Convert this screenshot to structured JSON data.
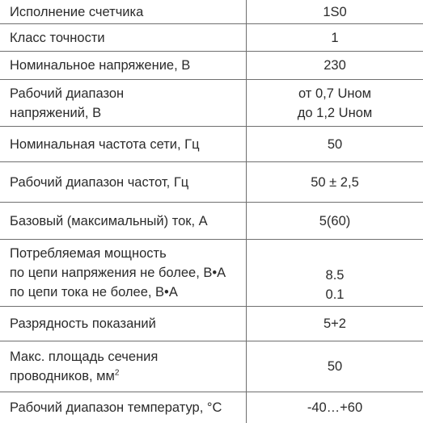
{
  "rows": [
    {
      "label_lines": [
        "Исполнение счетчика"
      ],
      "value_lines": [
        "1S0"
      ]
    },
    {
      "label_lines": [
        "Класс точности"
      ],
      "value_lines": [
        "1"
      ]
    },
    {
      "label_lines": [
        "Номинальное напряжение, В"
      ],
      "value_lines": [
        "230"
      ]
    },
    {
      "label_lines": [
        "Рабочий диапазон",
        "напряжений, В"
      ],
      "value_lines": [
        "от 0,7 Uном",
        "до 1,2 Uном"
      ]
    },
    {
      "label_lines": [
        "Номинальная частота сети, Гц"
      ],
      "value_lines": [
        "50"
      ]
    },
    {
      "label_lines": [
        "Рабочий диапазон частот, Гц"
      ],
      "value_lines": [
        "50 ± 2,5"
      ]
    },
    {
      "label_lines": [
        "Базовый (максимальный) ток, А"
      ],
      "value_lines": [
        "5(60)"
      ]
    },
    {
      "label_lines": [
        "Потребляемая мощность",
        "по цепи напряжения не более, В•А",
        "по цепи тока не более, В•А"
      ],
      "value_lines": [
        "8.5",
        "0.1"
      ]
    },
    {
      "label_lines": [
        "Разрядность показаний"
      ],
      "value_lines": [
        "5+2"
      ]
    },
    {
      "label_lines": [
        "Макс. площадь сечения",
        "проводников, мм"
      ],
      "label_sup": "2",
      "value_lines": [
        "50"
      ]
    },
    {
      "label_lines": [
        "Рабочий диапазон температур, °С"
      ],
      "value_lines": [
        "-40…+60"
      ]
    }
  ]
}
